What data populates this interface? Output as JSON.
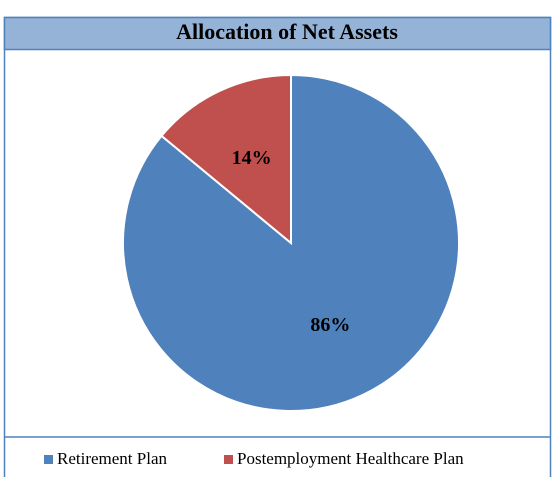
{
  "chart_data": {
    "type": "pie",
    "title": "Allocation of Net Assets",
    "categories": [
      "Retirement Plan",
      "Postemployment Healthcare Plan"
    ],
    "values": [
      86,
      14
    ],
    "value_labels": [
      "86%",
      "14%"
    ],
    "colors": [
      "#4f81bd",
      "#c0504d"
    ],
    "legend": "bottom"
  }
}
